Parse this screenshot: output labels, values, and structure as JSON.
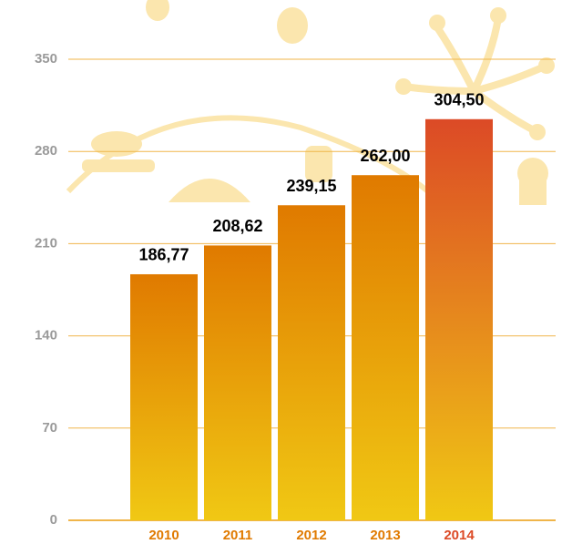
{
  "chart_data": {
    "type": "bar",
    "categories": [
      "2010",
      "2011",
      "2012",
      "2013",
      "2014"
    ],
    "values": [
      186.77,
      208.62,
      239.15,
      262.0,
      304.5
    ],
    "value_labels": [
      "186,77",
      "208,62",
      "239,15",
      "262,00",
      "304,50"
    ],
    "colors": [
      "#e07a00",
      "#e07a00",
      "#e07a00",
      "#e07a00",
      "#dc4a26"
    ],
    "ylim": [
      0,
      350
    ],
    "yticks": [
      0,
      70,
      140,
      210,
      280,
      350
    ],
    "grid": true
  }
}
